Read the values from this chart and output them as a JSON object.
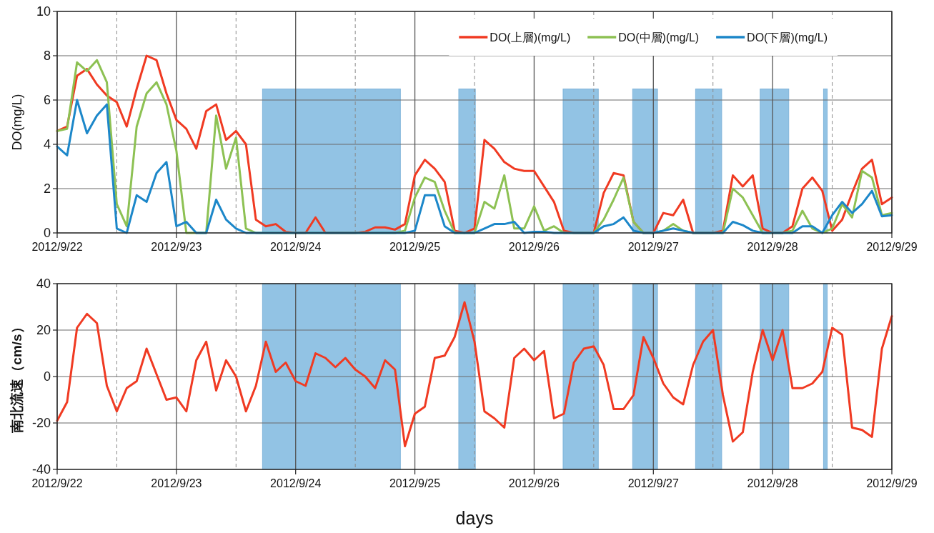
{
  "chart_data": [
    {
      "type": "line",
      "ylabel": "DO(mg/L)",
      "x": [
        "2012-09-22T00:00",
        "2012-09-22T02:00",
        "2012-09-22T04:00",
        "2012-09-22T06:00",
        "2012-09-22T08:00",
        "2012-09-22T10:00",
        "2012-09-22T12:00",
        "2012-09-22T14:00",
        "2012-09-22T16:00",
        "2012-09-22T18:00",
        "2012-09-22T20:00",
        "2012-09-22T22:00",
        "2012-09-23T00:00",
        "2012-09-23T02:00",
        "2012-09-23T04:00",
        "2012-09-23T06:00",
        "2012-09-23T08:00",
        "2012-09-23T10:00",
        "2012-09-23T12:00",
        "2012-09-23T14:00",
        "2012-09-23T16:00",
        "2012-09-23T18:00",
        "2012-09-23T20:00",
        "2012-09-23T22:00",
        "2012-09-24T00:00",
        "2012-09-24T02:00",
        "2012-09-24T04:00",
        "2012-09-24T06:00",
        "2012-09-24T08:00",
        "2012-09-24T10:00",
        "2012-09-24T12:00",
        "2012-09-24T14:00",
        "2012-09-24T16:00",
        "2012-09-24T18:00",
        "2012-09-24T20:00",
        "2012-09-24T22:00",
        "2012-09-25T00:00",
        "2012-09-25T02:00",
        "2012-09-25T04:00",
        "2012-09-25T06:00",
        "2012-09-25T08:00",
        "2012-09-25T10:00",
        "2012-09-25T12:00",
        "2012-09-25T14:00",
        "2012-09-25T16:00",
        "2012-09-25T18:00",
        "2012-09-25T20:00",
        "2012-09-25T22:00",
        "2012-09-26T00:00",
        "2012-09-26T02:00",
        "2012-09-26T04:00",
        "2012-09-26T06:00",
        "2012-09-26T08:00",
        "2012-09-26T10:00",
        "2012-09-26T12:00",
        "2012-09-26T14:00",
        "2012-09-26T16:00",
        "2012-09-26T18:00",
        "2012-09-26T20:00",
        "2012-09-26T22:00",
        "2012-09-27T00:00",
        "2012-09-27T02:00",
        "2012-09-27T04:00",
        "2012-09-27T06:00",
        "2012-09-27T08:00",
        "2012-09-27T10:00",
        "2012-09-27T12:00",
        "2012-09-27T14:00",
        "2012-09-27T16:00",
        "2012-09-27T18:00",
        "2012-09-27T20:00",
        "2012-09-27T22:00",
        "2012-09-28T00:00",
        "2012-09-28T02:00",
        "2012-09-28T04:00",
        "2012-09-28T06:00",
        "2012-09-28T08:00",
        "2012-09-28T10:00",
        "2012-09-28T12:00",
        "2012-09-28T14:00",
        "2012-09-28T16:00",
        "2012-09-28T18:00",
        "2012-09-28T20:00",
        "2012-09-28T22:00",
        "2012-09-29T00:00"
      ],
      "series": [
        {
          "name": "DO(上層)(mg/L)",
          "color": "#f03a22",
          "values": [
            4.6,
            4.8,
            7.1,
            7.4,
            6.7,
            6.2,
            5.9,
            4.8,
            6.5,
            8.0,
            7.8,
            6.3,
            5.1,
            4.7,
            3.8,
            5.5,
            5.8,
            4.2,
            4.6,
            4.0,
            0.6,
            0.3,
            0.4,
            0.05,
            0,
            0,
            0.7,
            0,
            0,
            0,
            0,
            0.05,
            0.25,
            0.25,
            0.15,
            0.4,
            2.6,
            3.3,
            2.9,
            2.3,
            0.1,
            0,
            0.2,
            4.2,
            3.8,
            3.2,
            2.9,
            2.8,
            2.8,
            2.1,
            1.4,
            0.1,
            0,
            0,
            0,
            1.8,
            2.7,
            2.6,
            0.5,
            0,
            0,
            0.9,
            0.8,
            1.5,
            0,
            0,
            0,
            0.1,
            2.6,
            2.1,
            2.6,
            0.2,
            0,
            0,
            0.3,
            2.0,
            2.5,
            1.9,
            0.1,
            0.6,
            1.8,
            2.9,
            3.3,
            1.3,
            1.6
          ]
        },
        {
          "name": "DO(中層)(mg/L)",
          "color": "#8dc153",
          "values": [
            4.6,
            4.7,
            7.7,
            7.3,
            7.8,
            6.8,
            1.3,
            0.3,
            4.8,
            6.3,
            6.8,
            5.8,
            3.7,
            0,
            0,
            0,
            5.3,
            2.9,
            4.3,
            0.2,
            0,
            0,
            0,
            0,
            0,
            0,
            0,
            0,
            0,
            0,
            0,
            0,
            0,
            0,
            0,
            0.1,
            1.6,
            2.5,
            2.3,
            1.0,
            0,
            0,
            0,
            1.4,
            1.1,
            2.6,
            0.2,
            0.2,
            1.2,
            0.1,
            0.3,
            0,
            0,
            0,
            0,
            0.6,
            1.5,
            2.5,
            0.5,
            0,
            0,
            0.1,
            0.4,
            0.1,
            0,
            0,
            0,
            0,
            2.0,
            1.6,
            0.8,
            0,
            0,
            0,
            0.1,
            1.0,
            0.2,
            0,
            0.2,
            1.3,
            0.7,
            2.8,
            2.5,
            0.8,
            0.9
          ]
        },
        {
          "name": "DO(下層)(mg/L)",
          "color": "#1c87c9",
          "values": [
            3.9,
            3.5,
            6.0,
            4.5,
            5.3,
            5.8,
            0.2,
            0,
            1.7,
            1.4,
            2.7,
            3.2,
            0.3,
            0.5,
            0,
            0,
            1.5,
            0.6,
            0.2,
            0,
            0,
            0,
            0,
            0,
            0,
            0,
            0,
            0,
            0,
            0,
            0,
            0,
            0,
            0,
            0,
            0,
            0.1,
            1.7,
            1.7,
            0.3,
            0,
            0,
            0,
            0.2,
            0.4,
            0.4,
            0.5,
            0,
            0.05,
            0.05,
            0,
            0,
            0,
            0,
            0,
            0.3,
            0.4,
            0.7,
            0.1,
            0,
            0,
            0.1,
            0.2,
            0.1,
            0,
            0,
            0,
            0,
            0.5,
            0.35,
            0.1,
            0,
            0,
            0,
            0,
            0.3,
            0.3,
            0,
            0.8,
            1.4,
            0.9,
            1.3,
            1.9,
            0.75,
            0.8
          ]
        }
      ],
      "xlim": [
        "2012-09-22T00:00",
        "2012-09-29T00:00"
      ],
      "xticks": [
        {
          "value": "2012-09-22T00:00",
          "label": "2012/9/22"
        },
        {
          "value": "2012-09-22T12:00",
          "label": null
        },
        {
          "value": "2012-09-23T00:00",
          "label": "2012/9/23"
        },
        {
          "value": "2012-09-23T12:00",
          "label": null
        },
        {
          "value": "2012-09-24T00:00",
          "label": "2012/9/24"
        },
        {
          "value": "2012-09-24T12:00",
          "label": null
        },
        {
          "value": "2012-09-25T00:00",
          "label": "2012/9/25"
        },
        {
          "value": "2012-09-25T12:00",
          "label": null
        },
        {
          "value": "2012-09-26T00:00",
          "label": "2012/9/26"
        },
        {
          "value": "2012-09-26T12:00",
          "label": null
        },
        {
          "value": "2012-09-27T00:00",
          "label": "2012/9/27"
        },
        {
          "value": "2012-09-27T12:00",
          "label": null
        },
        {
          "value": "2012-09-28T00:00",
          "label": "2012/9/28"
        },
        {
          "value": "2012-09-28T12:00",
          "label": null
        },
        {
          "value": "2012-09-29T00:00",
          "label": "2012/9/29"
        }
      ],
      "ylim": [
        0,
        10
      ],
      "yticks": [
        0,
        2,
        4,
        6,
        8,
        10
      ],
      "grid": true,
      "legend": "top right",
      "bands": [
        {
          "axis": "x",
          "from": "2012-09-23T17:20",
          "to": "2012-09-24T21:05",
          "color": "#92c3e4"
        },
        {
          "axis": "x",
          "from": "2012-09-25T08:50",
          "to": "2012-09-25T12:10",
          "color": "#92c3e4"
        },
        {
          "axis": "x",
          "from": "2012-09-26T05:50",
          "to": "2012-09-26T12:55",
          "color": "#92c3e4"
        },
        {
          "axis": "x",
          "from": "2012-09-26T19:50",
          "to": "2012-09-27T00:50",
          "color": "#92c3e4"
        },
        {
          "axis": "x",
          "from": "2012-09-27T08:30",
          "to": "2012-09-27T13:45",
          "color": "#92c3e4"
        },
        {
          "axis": "x",
          "from": "2012-09-27T21:30",
          "to": "2012-09-28T03:15",
          "color": "#92c3e4"
        },
        {
          "axis": "x",
          "from": "2012-09-28T10:15",
          "to": "2012-09-28T11:00",
          "color": "#92c3e4"
        }
      ]
    },
    {
      "type": "line",
      "ylabel": "南北流速（cm/s）",
      "xlabel": "days",
      "x": [
        "2012-09-22T00:00",
        "2012-09-22T02:00",
        "2012-09-22T04:00",
        "2012-09-22T06:00",
        "2012-09-22T08:00",
        "2012-09-22T10:00",
        "2012-09-22T12:00",
        "2012-09-22T14:00",
        "2012-09-22T16:00",
        "2012-09-22T18:00",
        "2012-09-22T20:00",
        "2012-09-22T22:00",
        "2012-09-23T00:00",
        "2012-09-23T02:00",
        "2012-09-23T04:00",
        "2012-09-23T06:00",
        "2012-09-23T08:00",
        "2012-09-23T10:00",
        "2012-09-23T12:00",
        "2012-09-23T14:00",
        "2012-09-23T16:00",
        "2012-09-23T18:00",
        "2012-09-23T20:00",
        "2012-09-23T22:00",
        "2012-09-24T00:00",
        "2012-09-24T02:00",
        "2012-09-24T04:00",
        "2012-09-24T06:00",
        "2012-09-24T08:00",
        "2012-09-24T10:00",
        "2012-09-24T12:00",
        "2012-09-24T14:00",
        "2012-09-24T16:00",
        "2012-09-24T18:00",
        "2012-09-24T20:00",
        "2012-09-24T22:00",
        "2012-09-25T00:00",
        "2012-09-25T02:00",
        "2012-09-25T04:00",
        "2012-09-25T06:00",
        "2012-09-25T08:00",
        "2012-09-25T10:00",
        "2012-09-25T12:00",
        "2012-09-25T14:00",
        "2012-09-25T16:00",
        "2012-09-25T18:00",
        "2012-09-25T20:00",
        "2012-09-25T22:00",
        "2012-09-26T00:00",
        "2012-09-26T02:00",
        "2012-09-26T04:00",
        "2012-09-26T06:00",
        "2012-09-26T08:00",
        "2012-09-26T10:00",
        "2012-09-26T12:00",
        "2012-09-26T14:00",
        "2012-09-26T16:00",
        "2012-09-26T18:00",
        "2012-09-26T20:00",
        "2012-09-26T22:00",
        "2012-09-27T00:00",
        "2012-09-27T02:00",
        "2012-09-27T04:00",
        "2012-09-27T06:00",
        "2012-09-27T08:00",
        "2012-09-27T10:00",
        "2012-09-27T12:00",
        "2012-09-27T14:00",
        "2012-09-27T16:00",
        "2012-09-27T18:00",
        "2012-09-27T20:00",
        "2012-09-27T22:00",
        "2012-09-28T00:00",
        "2012-09-28T02:00",
        "2012-09-28T04:00",
        "2012-09-28T06:00",
        "2012-09-28T08:00",
        "2012-09-28T10:00",
        "2012-09-28T12:00",
        "2012-09-28T14:00",
        "2012-09-28T16:00",
        "2012-09-28T18:00",
        "2012-09-28T20:00",
        "2012-09-28T22:00",
        "2012-09-29T00:00"
      ],
      "series": [
        {
          "color": "#f03a22",
          "values": [
            -19,
            -11,
            21,
            27,
            23,
            -4,
            -15,
            -5,
            -2,
            12,
            1,
            -10,
            -9,
            -15,
            7,
            15,
            -6,
            7,
            0,
            -15,
            -4,
            15,
            2,
            6,
            -2,
            -4,
            10,
            8,
            4,
            8,
            3,
            0,
            -5,
            7,
            3,
            -30,
            -16,
            -13,
            8,
            9,
            17,
            32,
            15,
            -15,
            -18,
            -22,
            8,
            12,
            7,
            11,
            -18,
            -16,
            6,
            12,
            13,
            5,
            -14,
            -14,
            -8,
            17,
            8,
            -3,
            -9,
            -12,
            5,
            15,
            20,
            -8,
            -28,
            -24,
            2,
            20,
            7,
            20,
            -5,
            -5,
            -3,
            2,
            21,
            18,
            -22,
            -23,
            -26,
            12,
            26
          ]
        }
      ],
      "xlim": [
        "2012-09-22T00:00",
        "2012-09-29T00:00"
      ],
      "xticks": [
        {
          "value": "2012-09-22T00:00",
          "label": "2012/9/22"
        },
        {
          "value": "2012-09-22T12:00",
          "label": null
        },
        {
          "value": "2012-09-23T00:00",
          "label": "2012/9/23"
        },
        {
          "value": "2012-09-23T12:00",
          "label": null
        },
        {
          "value": "2012-09-24T00:00",
          "label": "2012/9/24"
        },
        {
          "value": "2012-09-24T12:00",
          "label": null
        },
        {
          "value": "2012-09-25T00:00",
          "label": "2012/9/25"
        },
        {
          "value": "2012-09-25T12:00",
          "label": null
        },
        {
          "value": "2012-09-26T00:00",
          "label": "2012/9/26"
        },
        {
          "value": "2012-09-26T12:00",
          "label": null
        },
        {
          "value": "2012-09-27T00:00",
          "label": "2012/9/27"
        },
        {
          "value": "2012-09-27T12:00",
          "label": null
        },
        {
          "value": "2012-09-28T00:00",
          "label": "2012/9/28"
        },
        {
          "value": "2012-09-28T12:00",
          "label": null
        },
        {
          "value": "2012-09-29T00:00",
          "label": "2012/9/29"
        }
      ],
      "ylim": [
        -40,
        40
      ],
      "yticks": [
        -40,
        -20,
        0,
        20,
        40
      ],
      "grid": true,
      "bands": [
        {
          "axis": "x",
          "from": "2012-09-23T17:20",
          "to": "2012-09-24T21:05",
          "color": "#92c3e4"
        },
        {
          "axis": "x",
          "from": "2012-09-25T08:50",
          "to": "2012-09-25T12:10",
          "color": "#92c3e4"
        },
        {
          "axis": "x",
          "from": "2012-09-26T05:50",
          "to": "2012-09-26T12:55",
          "color": "#92c3e4"
        },
        {
          "axis": "x",
          "from": "2012-09-26T19:50",
          "to": "2012-09-27T00:50",
          "color": "#92c3e4"
        },
        {
          "axis": "x",
          "from": "2012-09-27T08:30",
          "to": "2012-09-27T13:45",
          "color": "#92c3e4"
        },
        {
          "axis": "x",
          "from": "2012-09-27T21:30",
          "to": "2012-09-28T03:15",
          "color": "#92c3e4"
        },
        {
          "axis": "x",
          "from": "2012-09-28T10:15",
          "to": "2012-09-28T11:00",
          "color": "#92c3e4"
        }
      ]
    }
  ]
}
